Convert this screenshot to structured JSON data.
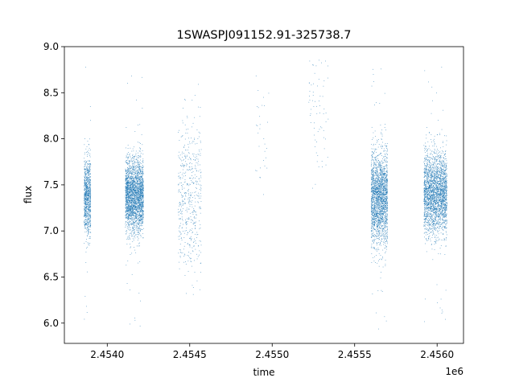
{
  "chart_data": {
    "type": "scatter",
    "title": "1SWASPJ091152.91-325738.7",
    "xlabel": "time",
    "ylabel": "flux",
    "x_offset_label": "1e6",
    "xlim": [
      2.45374,
      2.45616
    ],
    "ylim": [
      5.78,
      9.0
    ],
    "x_ticks": [
      2.454,
      2.4545,
      2.455,
      2.4555,
      2.456
    ],
    "x_tick_labels": [
      "2.4540",
      "2.4545",
      "2.4550",
      "2.4555",
      "2.4560"
    ],
    "y_ticks": [
      6.0,
      6.5,
      7.0,
      7.5,
      8.0,
      8.5,
      9.0
    ],
    "y_tick_labels": [
      "6.0",
      "6.5",
      "7.0",
      "7.5",
      "8.0",
      "8.5",
      "9.0"
    ],
    "grid": false,
    "point_color": "#1f77b4",
    "observing_seasons": [
      {
        "x_start": 2.45386,
        "x_end": 2.4539,
        "y_median": 7.38,
        "y_spread": 0.22,
        "points": 900
      },
      {
        "x_start": 2.45411,
        "x_end": 2.45422,
        "y_median": 7.38,
        "y_spread": 0.2,
        "points": 2600
      },
      {
        "x_start": 2.45443,
        "x_end": 2.45457,
        "y_median": 7.4,
        "y_spread": 0.4,
        "points": 500
      },
      {
        "x_start": 2.4549,
        "x_end": 2.45498,
        "y_median": 8.1,
        "y_spread": 0.35,
        "points": 30
      },
      {
        "x_start": 2.45522,
        "x_end": 2.45534,
        "y_median": 8.3,
        "y_spread": 0.4,
        "points": 70
      },
      {
        "x_start": 2.4556,
        "x_end": 2.4557,
        "y_median": 7.35,
        "y_spread": 0.25,
        "points": 2200
      },
      {
        "x_start": 2.45592,
        "x_end": 2.45606,
        "y_median": 7.4,
        "y_spread": 0.22,
        "points": 2600
      }
    ]
  }
}
